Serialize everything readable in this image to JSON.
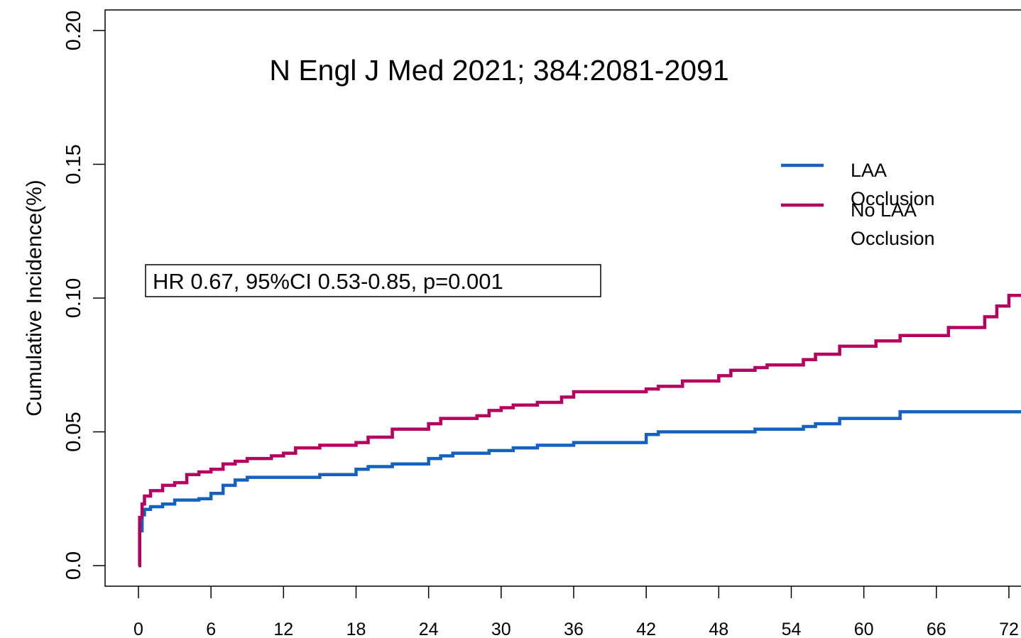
{
  "chart_data": {
    "type": "line",
    "step": "post",
    "annotations": [
      "N Engl J Med 2021; 384:2081-2091",
      "HR 0.67, 95%CI 0.53-0.85, p=0.001"
    ],
    "y_label": "Cumulative Incidence(%)",
    "x": [
      0,
      0.1,
      0.3,
      0.5,
      1,
      2,
      3,
      4,
      5,
      6,
      7,
      8,
      9,
      11,
      12,
      13,
      15,
      18,
      19,
      21,
      24,
      25,
      26,
      28,
      29,
      30,
      31,
      33,
      35,
      36,
      42,
      43,
      45,
      48,
      49,
      51,
      52,
      55,
      56,
      58,
      61,
      63,
      67,
      70,
      71,
      72,
      73
    ],
    "series": [
      {
        "name": "LAA Occlusion",
        "color": "#1561c0",
        "values": [
          0,
          0.013,
          0.019,
          0.021,
          0.022,
          0.023,
          0.0245,
          0.0245,
          0.025,
          0.027,
          0.03,
          0.032,
          0.033,
          0.033,
          0.033,
          0.033,
          0.034,
          0.036,
          0.037,
          0.038,
          0.04,
          0.041,
          0.042,
          0.042,
          0.043,
          0.043,
          0.044,
          0.045,
          0.045,
          0.046,
          0.049,
          0.05,
          0.05,
          0.05,
          0.05,
          0.051,
          0.051,
          0.052,
          0.053,
          0.055,
          0.055,
          0.0575,
          0.0575,
          0.0575,
          0.0575,
          0.0575,
          0.0575
        ]
      },
      {
        "name": "No LAA Occlusion",
        "color": "#b5005f",
        "values": [
          0,
          0.018,
          0.023,
          0.026,
          0.028,
          0.03,
          0.031,
          0.034,
          0.035,
          0.036,
          0.038,
          0.039,
          0.04,
          0.041,
          0.042,
          0.044,
          0.045,
          0.046,
          0.048,
          0.051,
          0.053,
          0.055,
          0.055,
          0.056,
          0.058,
          0.059,
          0.06,
          0.061,
          0.063,
          0.065,
          0.066,
          0.067,
          0.069,
          0.071,
          0.073,
          0.074,
          0.075,
          0.077,
          0.079,
          0.082,
          0.084,
          0.086,
          0.089,
          0.093,
          0.097,
          0.101,
          0.101
        ]
      }
    ],
    "xlim": [
      -2.76,
      73.0
    ],
    "ylim": [
      -0.0077,
      0.2077
    ],
    "xticks": [
      0,
      6,
      12,
      18,
      24,
      30,
      36,
      42,
      48,
      54,
      60,
      66,
      72
    ],
    "yticks": [
      {
        "value": 0,
        "label": "0.0"
      },
      0.05,
      {
        "value": 0.1,
        "label": "0.10"
      },
      0.15,
      {
        "value": 0.2,
        "label": "0.20"
      }
    ]
  }
}
